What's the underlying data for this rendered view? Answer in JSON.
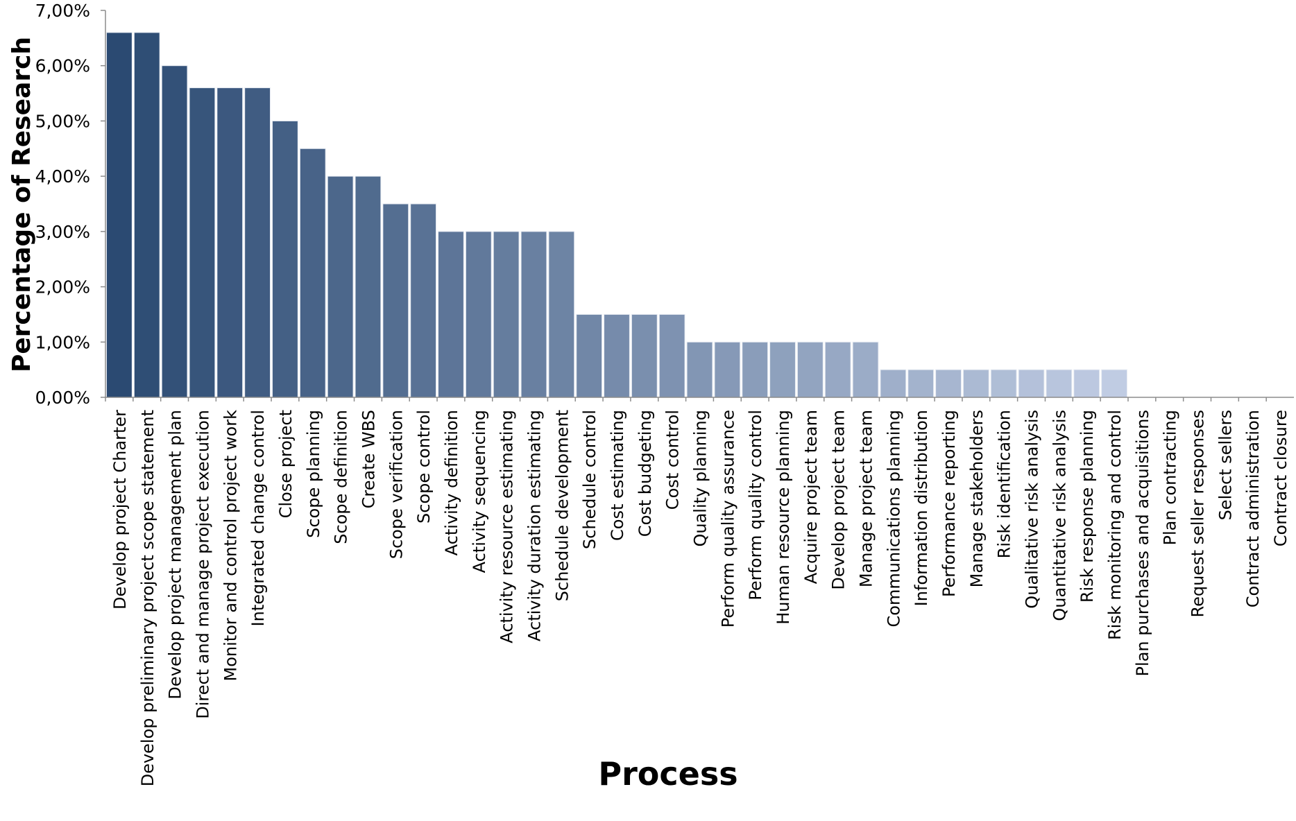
{
  "chart_data": {
    "type": "bar",
    "title": "",
    "xlabel": "Process",
    "ylabel": "Percentage of Research",
    "ylim": [
      0,
      7
    ],
    "yticks": [
      "0,00%",
      "1,00%",
      "2,00%",
      "3,00%",
      "4,00%",
      "5,00%",
      "6,00%",
      "7,00%"
    ],
    "grid": false,
    "legend": "none",
    "color_dark": "#2b4a72",
    "color_light": "#c0cce3",
    "categories": [
      "Develop project Charter",
      "Develop preliminary project scope statement",
      "Develop project management plan",
      "Direct and manage project execution",
      "Monitor and control project work",
      "Integrated change control",
      "Close project",
      "Scope planning",
      "Scope definition",
      "Create WBS",
      "Scope verification",
      "Scope control",
      "Activity definition",
      "Activity sequencing",
      "Activity resource estimating",
      "Activity duration estimating",
      "Schedule development",
      "Schedule control",
      "Cost estimating",
      "Cost budgeting",
      "Cost control",
      "Quality planning",
      "Perform quality assurance",
      "Perform quality control",
      "Human resource planning",
      "Acquire project team",
      "Develop project team",
      "Manage project team",
      "Communications planning",
      "Information distribution",
      "Performance reporting",
      "Manage stakeholders",
      "Risk identification",
      "Qualitative risk analysis",
      "Quantitative risk analysis",
      "Risk response planning",
      "Risk monitoring and control",
      "Plan purchases and acquisitions",
      "Plan contracting",
      "Request seller responses",
      "Select sellers",
      "Contract administration",
      "Contract closure"
    ],
    "values": [
      6.6,
      6.6,
      6.0,
      5.6,
      5.6,
      5.6,
      5.0,
      4.5,
      4.0,
      4.0,
      3.5,
      3.5,
      3.0,
      3.0,
      3.0,
      3.0,
      3.0,
      1.5,
      1.5,
      1.5,
      1.5,
      1.0,
      1.0,
      1.0,
      1.0,
      1.0,
      1.0,
      1.0,
      0.5,
      0.5,
      0.5,
      0.5,
      0.5,
      0.5,
      0.5,
      0.5,
      0.5,
      0,
      0,
      0,
      0,
      0,
      0
    ]
  }
}
